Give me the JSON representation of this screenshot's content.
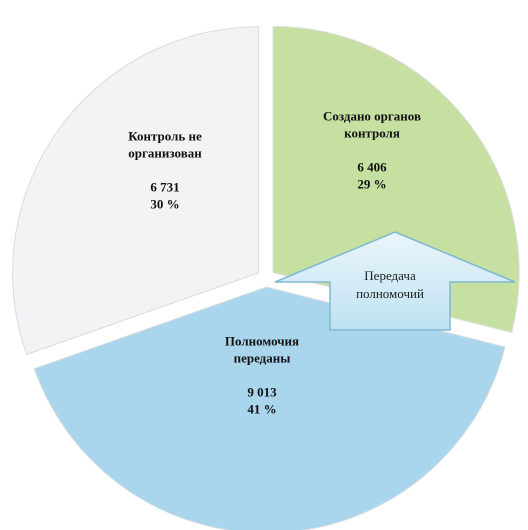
{
  "chart_data": {
    "type": "pie",
    "categories": [
      "Создано органов контроля",
      "Полномочия переданы",
      "Контроль не организован"
    ],
    "values": [
      6406,
      9013,
      6731
    ],
    "value_labels": [
      "6 406",
      "9 013",
      "6 731"
    ],
    "percents": [
      29,
      41,
      30
    ],
    "percent_labels": [
      "29 %",
      "41 %",
      "30 %"
    ],
    "colors": [
      "#c6e0a2",
      "#a9d6ec",
      "#f1f3f5"
    ],
    "annotation": "Передача полномочий"
  }
}
